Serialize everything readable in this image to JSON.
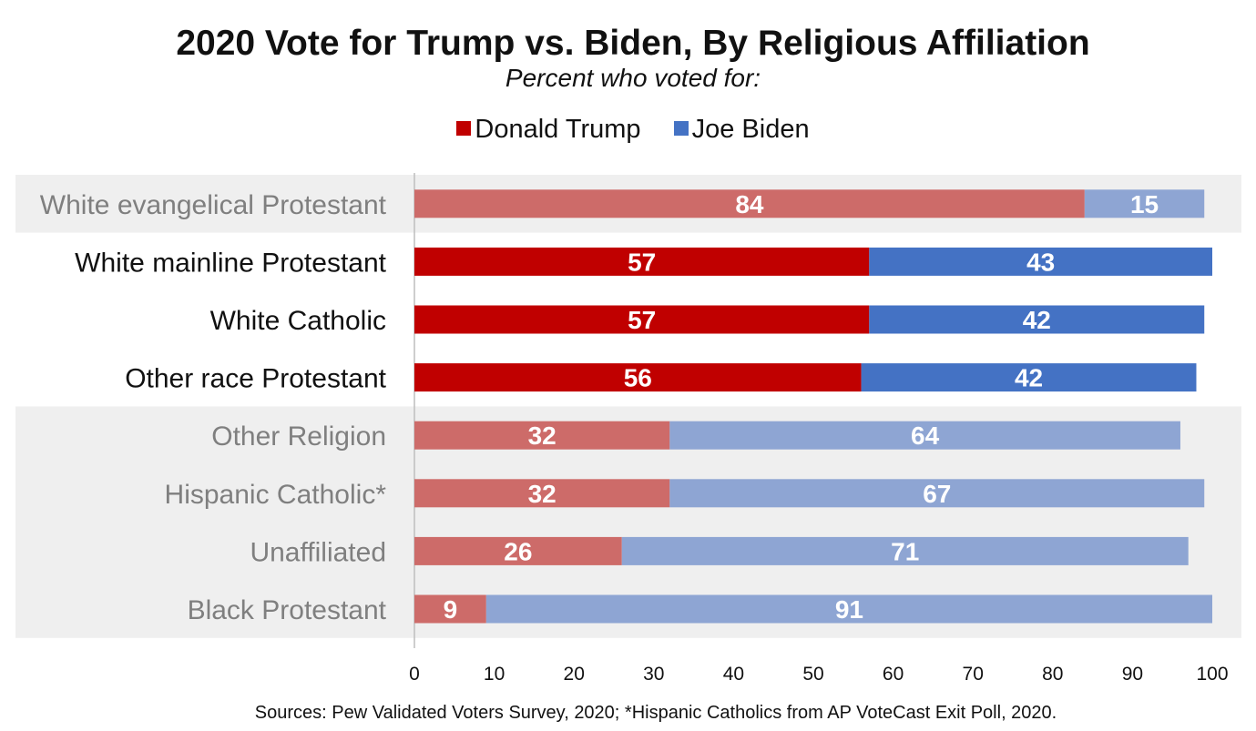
{
  "chart_data": {
    "type": "bar",
    "orientation": "horizontal",
    "stacked": true,
    "title": "2020 Vote for Trump vs. Biden, By Religious Affiliation",
    "subtitle": "Percent who voted for:",
    "categories": [
      "White evangelical Protestant",
      "White mainline Protestant",
      "White Catholic",
      "Other race Protestant",
      "Other Religion",
      "Hispanic Catholic*",
      "Unaffiliated",
      "Black Protestant"
    ],
    "emphasized": [
      false,
      true,
      true,
      true,
      false,
      false,
      false,
      false
    ],
    "series": [
      {
        "name": "Donald Trump",
        "color": "#c00000",
        "muted_color": "#cd6b69",
        "values": [
          84,
          57,
          57,
          56,
          32,
          32,
          26,
          9
        ]
      },
      {
        "name": "Joe Biden",
        "color": "#4472c4",
        "muted_color": "#8ea5d3",
        "values": [
          15,
          43,
          42,
          42,
          64,
          67,
          71,
          91
        ]
      }
    ],
    "xlim": [
      0,
      100
    ],
    "x_ticks": [
      "0",
      "10",
      "20",
      "30",
      "40",
      "50",
      "60",
      "70",
      "80",
      "90",
      "100"
    ],
    "legend_position": "top-center",
    "grid": false
  },
  "source_note": "Sources: Pew Validated Voters Survey, 2020; *Hispanic Catholics from AP VoteCast Exit Poll, 2020."
}
